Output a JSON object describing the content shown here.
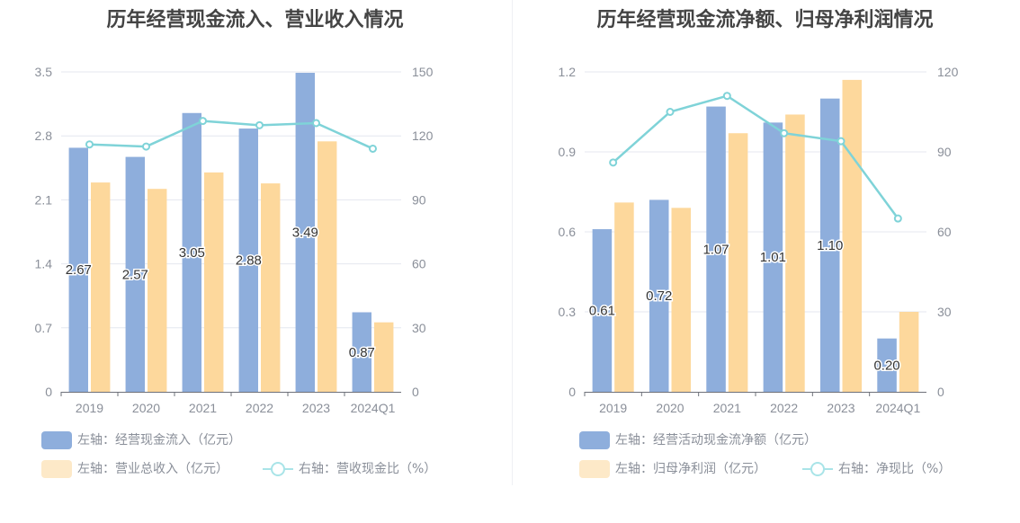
{
  "colors": {
    "bar1": "#8eaedc",
    "bar2": "#fdd89c",
    "line": "#7fd3d8",
    "legend_bar2": "#fde9c8",
    "line_soft": "#a9e4e8"
  },
  "chart_data": [
    {
      "type": "bar",
      "title": "历年经营现金流入、营业收入情况",
      "categories": [
        "2019",
        "2020",
        "2021",
        "2022",
        "2023",
        "2024Q1"
      ],
      "y_left": {
        "min": 0,
        "max": 3.5,
        "ticks": [
          "0",
          "0.7",
          "1.4",
          "2.1",
          "2.8",
          "3.5"
        ]
      },
      "y_right": {
        "min": 0,
        "max": 150,
        "ticks": [
          "0",
          "30",
          "60",
          "90",
          "120",
          "150"
        ]
      },
      "series": [
        {
          "name": "左轴：经营现金流入（亿元）",
          "axis": "left",
          "type": "bar",
          "values": [
            2.67,
            2.57,
            3.05,
            2.88,
            3.49,
            0.87
          ],
          "labels": [
            "2.67",
            "2.57",
            "3.05",
            "2.88",
            "3.49",
            "0.87"
          ]
        },
        {
          "name": "左轴：营业总收入（亿元）",
          "axis": "left",
          "type": "bar",
          "values": [
            2.29,
            2.22,
            2.4,
            2.28,
            2.74,
            0.76
          ]
        },
        {
          "name": "右轴：营收现金比（%）",
          "axis": "right",
          "type": "line",
          "values": [
            116,
            115,
            127,
            125,
            126,
            114
          ]
        }
      ],
      "grid": true,
      "legend": "bottom"
    },
    {
      "type": "bar",
      "title": "历年经营现金流净额、归母净利润情况",
      "categories": [
        "2019",
        "2020",
        "2021",
        "2022",
        "2023",
        "2024Q1"
      ],
      "y_left": {
        "min": 0,
        "max": 1.2,
        "ticks": [
          "0",
          "0.3",
          "0.6",
          "0.9",
          "1.2"
        ]
      },
      "y_right": {
        "min": 0,
        "max": 120,
        "ticks": [
          "0",
          "30",
          "60",
          "90",
          "120"
        ]
      },
      "series": [
        {
          "name": "左轴：经营活动现金流净额（亿元）",
          "axis": "left",
          "type": "bar",
          "values": [
            0.61,
            0.72,
            1.07,
            1.01,
            1.1,
            0.2
          ],
          "labels": [
            "0.61",
            "0.72",
            "1.07",
            "1.01",
            "1.10",
            "0.20"
          ]
        },
        {
          "name": "左轴：归母净利润（亿元）",
          "axis": "left",
          "type": "bar",
          "values": [
            0.71,
            0.69,
            0.97,
            1.04,
            1.17,
            0.3
          ]
        },
        {
          "name": "右轴：净现比（%）",
          "axis": "right",
          "type": "line",
          "values": [
            86,
            105,
            111,
            97,
            94,
            65
          ]
        }
      ],
      "grid": true,
      "legend": "bottom"
    }
  ]
}
